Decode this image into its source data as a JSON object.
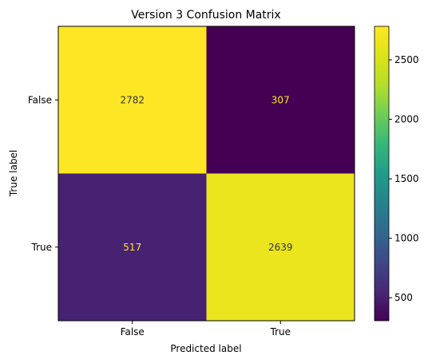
{
  "chart_data": {
    "type": "heatmap",
    "title": "Version 3 Confusion Matrix",
    "xlabel": "Predicted label",
    "ylabel": "True label",
    "x_categories": [
      "False",
      "True"
    ],
    "y_categories": [
      "False",
      "True"
    ],
    "values": [
      [
        2782,
        307
      ],
      [
        517,
        2639
      ]
    ],
    "colormap": "viridis",
    "value_text_colors": {
      "light_cell": "#333333",
      "dark_cell": "#fde725"
    },
    "colorbar": {
      "range": [
        307,
        2782
      ],
      "ticks": [
        500,
        1000,
        1500,
        2000,
        2500
      ],
      "tick_labels": [
        "500",
        "1000",
        "1500",
        "2000",
        "2500"
      ]
    },
    "grid": false,
    "legend": "colorbar-right"
  }
}
